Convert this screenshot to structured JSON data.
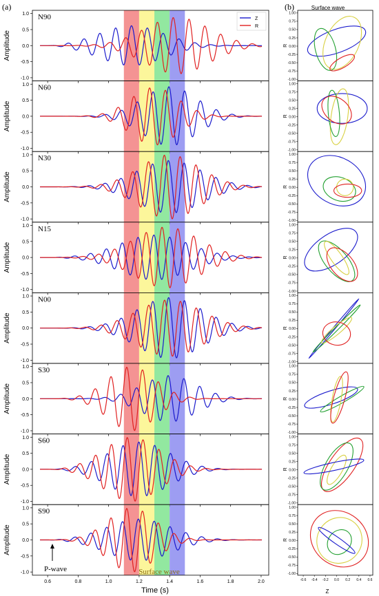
{
  "panel_a_label": "(a)",
  "panel_b_label": "(b)",
  "panel_b_title": "Surface wave",
  "annotations": {
    "p_wave": "P-wave",
    "surface_wave": "Surface wave"
  },
  "colors": {
    "Z": "#1a1acc",
    "R": "#e02020",
    "band_red": "#f28080",
    "band_yellow": "#fbf48a",
    "band_green": "#7fe48f",
    "band_blue": "#8c8cf0",
    "orbit_yellow": "#d8d040",
    "orbit_green": "#22a030"
  },
  "chart_data": [
    {
      "type": "line",
      "id": "waveforms",
      "xlabel": "Time (s)",
      "ylabel": "Amplitude",
      "xlim": [
        0.5,
        2.05
      ],
      "ylim": [
        -1.1,
        1.1
      ],
      "xticks": [
        "0.6",
        "0.8",
        "1.0",
        "1.2",
        "1.4",
        "1.6",
        "1.8",
        "2.0"
      ],
      "xtick_values": [
        0.6,
        0.8,
        1.0,
        1.2,
        1.4,
        1.6,
        1.8,
        2.0
      ],
      "yticks": [
        "-1.0",
        "-0.5",
        "0.0",
        "0.5",
        "1.0"
      ],
      "ytick_values": [
        -1.0,
        -0.5,
        0.0,
        0.5,
        1.0
      ],
      "legend": {
        "position": "top-right",
        "entries": [
          "Z",
          "R"
        ]
      },
      "bands": [
        {
          "x0": 1.1,
          "x1": 1.2,
          "color": "band_red"
        },
        {
          "x0": 1.2,
          "x1": 1.3,
          "color": "band_yellow"
        },
        {
          "x0": 1.3,
          "x1": 1.4,
          "color": "band_green"
        },
        {
          "x0": 1.4,
          "x1": 1.5,
          "color": "band_blue"
        }
      ],
      "stations": [
        {
          "label": "N90",
          "Z": {
            "amp": 0.62,
            "peak_t": 1.15,
            "width": 0.3,
            "freq": 9.6,
            "phase": 0.0
          },
          "R": {
            "amp": 0.88,
            "peak_t": 1.45,
            "width": 0.3,
            "freq": 9.6,
            "phase": 1.6
          }
        },
        {
          "label": "N60",
          "Z": {
            "amp": 0.92,
            "peak_t": 1.4,
            "width": 0.25,
            "freq": 9.6,
            "phase": 0.3
          },
          "R": {
            "amp": 0.9,
            "peak_t": 1.3,
            "width": 0.22,
            "freq": 9.6,
            "phase": 1.9
          }
        },
        {
          "label": "N30",
          "Z": {
            "amp": 0.82,
            "peak_t": 1.4,
            "width": 0.3,
            "freq": 9.6,
            "phase": 0.5
          },
          "R": {
            "amp": 1.0,
            "peak_t": 1.4,
            "width": 0.28,
            "freq": 9.6,
            "phase": 2.1
          }
        },
        {
          "label": "N15",
          "Z": {
            "amp": 0.7,
            "peak_t": 1.3,
            "width": 0.32,
            "freq": 9.6,
            "phase": 0.2
          },
          "R": {
            "amp": 0.95,
            "peak_t": 1.38,
            "width": 0.3,
            "freq": 9.6,
            "phase": 1.8
          }
        },
        {
          "label": "N00",
          "Z": {
            "amp": 0.95,
            "peak_t": 1.4,
            "width": 0.3,
            "freq": 9.6,
            "phase": 0.4
          },
          "R": {
            "amp": 0.88,
            "peak_t": 1.4,
            "width": 0.3,
            "freq": 9.6,
            "phase": 2.0
          }
        },
        {
          "label": "S30",
          "Z": {
            "amp": 0.72,
            "peak_t": 1.4,
            "width": 0.25,
            "freq": 9.6,
            "phase": 0.6
          },
          "R": {
            "amp": 1.0,
            "peak_t": 1.15,
            "width": 0.22,
            "freq": 9.6,
            "phase": 1.9
          }
        },
        {
          "label": "S60",
          "Z": {
            "amp": 0.85,
            "peak_t": 1.2,
            "width": 0.28,
            "freq": 9.6,
            "phase": 0.1
          },
          "R": {
            "amp": 1.0,
            "peak_t": 1.15,
            "width": 0.26,
            "freq": 9.6,
            "phase": 1.7
          }
        },
        {
          "label": "S90",
          "Z": {
            "amp": 0.65,
            "peak_t": 1.2,
            "width": 0.3,
            "freq": 9.6,
            "phase": 0.3
          },
          "R": {
            "amp": 1.0,
            "peak_t": 1.15,
            "width": 0.22,
            "freq": 9.6,
            "phase": 1.9
          }
        }
      ]
    },
    {
      "type": "scatter",
      "id": "particle-motion",
      "xlabel": "Z",
      "ylabel": "R",
      "xlim": [
        -0.7,
        0.65
      ],
      "ylim": [
        -1.05,
        1.08
      ],
      "xticks": [
        "-0.6",
        "-0.4",
        "-0.2",
        "0.0",
        "0.2",
        "0.4",
        "0.6"
      ],
      "xtick_values": [
        -0.6,
        -0.4,
        -0.2,
        0.0,
        0.2,
        0.4,
        0.6
      ],
      "yticks": [
        "1.00",
        "0.75",
        "0.50",
        "0.25",
        "0.00",
        "-0.25",
        "-0.50",
        "-0.75",
        "-1.00"
      ],
      "ytick_values": [
        1.0,
        0.75,
        0.5,
        0.25,
        0.0,
        -0.25,
        -0.5,
        -0.75,
        -1.0
      ],
      "orbits": [
        [
          {
            "c": "Z",
            "cx": 0.0,
            "cy": 0.15,
            "rx": 0.55,
            "ry": 0.35,
            "rot": -20
          },
          {
            "c": "orbit_yellow",
            "cx": 0.1,
            "cy": 0.1,
            "rx": 0.3,
            "ry": 0.85,
            "rot": 25
          },
          {
            "c": "orbit_green",
            "cx": -0.2,
            "cy": -0.1,
            "rx": 0.18,
            "ry": 0.65,
            "rot": -15
          },
          {
            "c": "R",
            "cx": 0.1,
            "cy": -0.5,
            "rx": 0.25,
            "ry": 0.15,
            "rot": -30
          }
        ],
        [
          {
            "c": "Z",
            "cx": 0.1,
            "cy": 0.25,
            "rx": 0.45,
            "ry": 0.45,
            "rot": 0
          },
          {
            "c": "orbit_yellow",
            "cx": 0.05,
            "cy": 0.0,
            "rx": 0.15,
            "ry": 0.85,
            "rot": 8
          },
          {
            "c": "orbit_green",
            "cx": -0.05,
            "cy": 0.1,
            "rx": 0.1,
            "ry": 0.7,
            "rot": -5
          },
          {
            "c": "R",
            "cx": 0.0,
            "cy": 0.2,
            "rx": 0.3,
            "ry": 0.35,
            "rot": 40
          }
        ],
        [
          {
            "c": "Z",
            "cx": 0.0,
            "cy": 0.2,
            "rx": 0.55,
            "ry": 0.7,
            "rot": 30
          },
          {
            "c": "orbit_green",
            "cx": 0.05,
            "cy": -0.05,
            "rx": 0.3,
            "ry": 0.35,
            "rot": 20
          },
          {
            "c": "orbit_yellow",
            "cx": 0.15,
            "cy": 0.0,
            "rx": 0.15,
            "ry": 0.25,
            "rot": 0
          },
          {
            "c": "R",
            "cx": 0.2,
            "cy": -0.1,
            "rx": 0.25,
            "ry": 0.2,
            "rot": 0
          }
        ],
        [
          {
            "c": "Z",
            "cx": -0.1,
            "cy": 0.25,
            "rx": 0.55,
            "ry": 0.45,
            "rot": -35
          },
          {
            "c": "orbit_green",
            "cx": 0.0,
            "cy": -0.1,
            "rx": 0.2,
            "ry": 0.75,
            "rot": -40
          },
          {
            "c": "orbit_yellow",
            "cx": 0.0,
            "cy": 0.0,
            "rx": 0.1,
            "ry": 0.6,
            "rot": -35
          },
          {
            "c": "R",
            "cx": 0.1,
            "cy": -0.2,
            "rx": 0.2,
            "ry": 0.6,
            "rot": -40
          }
        ],
        [
          {
            "c": "Z",
            "cx": -0.05,
            "cy": 0.0,
            "rx": 0.7,
            "ry": 0.03,
            "rot": -50
          },
          {
            "c": "orbit_green",
            "cx": 0.0,
            "cy": 0.0,
            "rx": 0.6,
            "ry": 0.05,
            "rot": -45
          },
          {
            "c": "orbit_yellow",
            "cx": 0.0,
            "cy": -0.05,
            "rx": 0.35,
            "ry": 0.12,
            "rot": -40
          },
          {
            "c": "R",
            "cx": 0.0,
            "cy": -0.15,
            "rx": 0.25,
            "ry": 0.35,
            "rot": 10
          }
        ],
        [
          {
            "c": "Z",
            "cx": -0.1,
            "cy": 0.05,
            "rx": 0.5,
            "ry": 0.2,
            "rot": -18
          },
          {
            "c": "orbit_green",
            "cx": 0.1,
            "cy": 0.0,
            "rx": 0.45,
            "ry": 0.1,
            "rot": -30
          },
          {
            "c": "orbit_yellow",
            "cx": 0.0,
            "cy": 0.0,
            "rx": 0.08,
            "ry": 0.7,
            "rot": 10
          },
          {
            "c": "R",
            "cx": 0.05,
            "cy": 0.05,
            "rx": 0.1,
            "ry": 0.8,
            "rot": 15
          }
        ],
        [
          {
            "c": "R",
            "cx": 0.1,
            "cy": 0.15,
            "rx": 0.22,
            "ry": 0.95,
            "rot": 35
          },
          {
            "c": "orbit_green",
            "cx": 0.0,
            "cy": 0.1,
            "rx": 0.2,
            "ry": 0.8,
            "rot": 30
          },
          {
            "c": "orbit_yellow",
            "cx": 0.0,
            "cy": 0.0,
            "rx": 0.1,
            "ry": 0.5,
            "rot": 30
          },
          {
            "c": "Z",
            "cx": -0.05,
            "cy": 0.1,
            "rx": 0.55,
            "ry": 0.12,
            "rot": -12
          }
        ],
        [
          {
            "c": "R",
            "cx": 0.05,
            "cy": 0.05,
            "rx": 0.55,
            "ry": 0.8,
            "rot": 40
          },
          {
            "c": "orbit_yellow",
            "cx": 0.05,
            "cy": 0.0,
            "rx": 0.4,
            "ry": 0.7,
            "rot": 35
          },
          {
            "c": "orbit_green",
            "cx": 0.05,
            "cy": -0.05,
            "rx": 0.2,
            "ry": 0.4,
            "rot": 40
          },
          {
            "c": "Z",
            "cx": 0.0,
            "cy": 0.0,
            "rx": 0.4,
            "ry": 0.1,
            "rot": 35
          }
        ]
      ]
    }
  ]
}
